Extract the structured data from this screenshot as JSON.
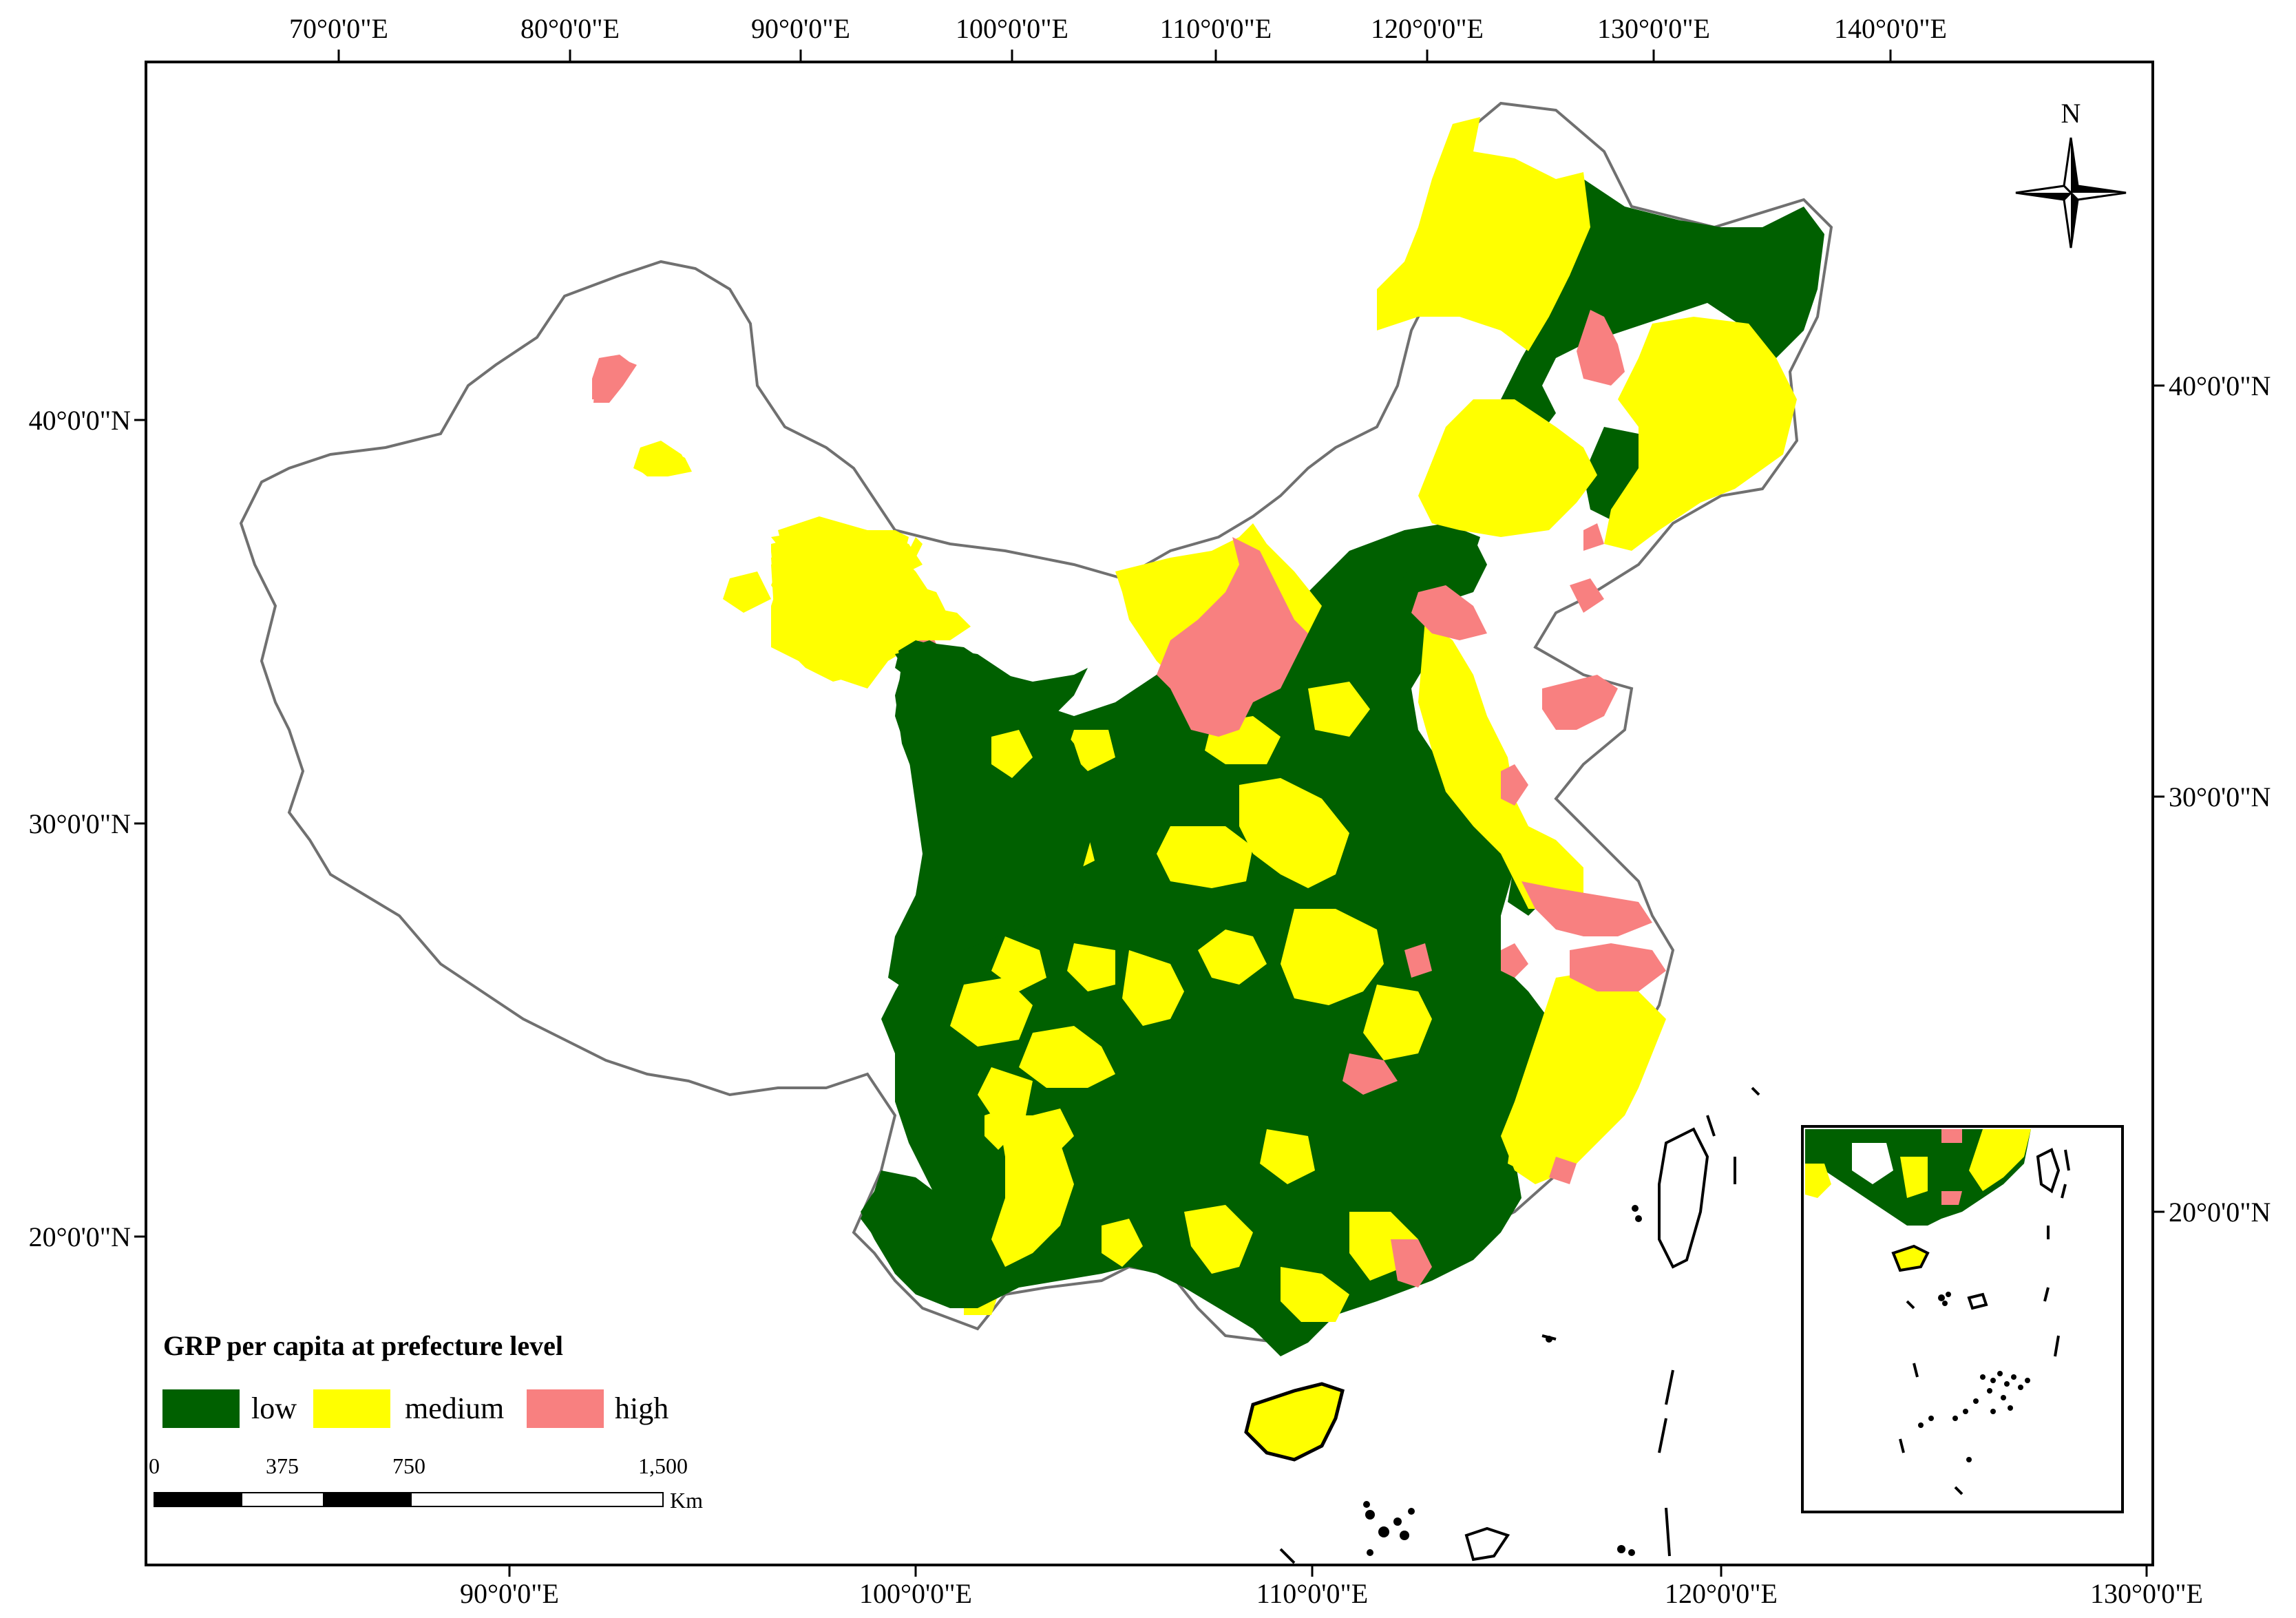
{
  "map": {
    "top_lon_labels": [
      "70°0'0\"E",
      "80°0'0\"E",
      "90°0'0\"E",
      "100°0'0\"E",
      "110°0'0\"E",
      "120°0'0\"E",
      "130°0'0\"E",
      "140°0'0\"E"
    ],
    "bottom_lon_labels": [
      "90°0'0\"E",
      "100°0'0\"E",
      "110°0'0\"E",
      "120°0'0\"E",
      "130°0'0\"E"
    ],
    "left_lat_labels": [
      "40°0'0\"N",
      "30°0'0\"N",
      "20°0'0\"N"
    ],
    "right_lat_labels": [
      "40°0'0\"N",
      "30°0'0\"N",
      "20°0'0\"N"
    ],
    "north_arrow_label": "N",
    "colors": {
      "low": "#006000",
      "medium": "#ffff00",
      "high": "#f88080",
      "border": "#707070"
    }
  },
  "legend": {
    "title": "GRP per capita at prefecture level",
    "items": [
      {
        "label": "low",
        "color": "#006000"
      },
      {
        "label": "medium",
        "color": "#ffff00"
      },
      {
        "label": "high",
        "color": "#f88080"
      }
    ]
  },
  "scale_bar": {
    "labels": [
      "0",
      "375",
      "750",
      "1,500"
    ],
    "unit": "Km"
  }
}
